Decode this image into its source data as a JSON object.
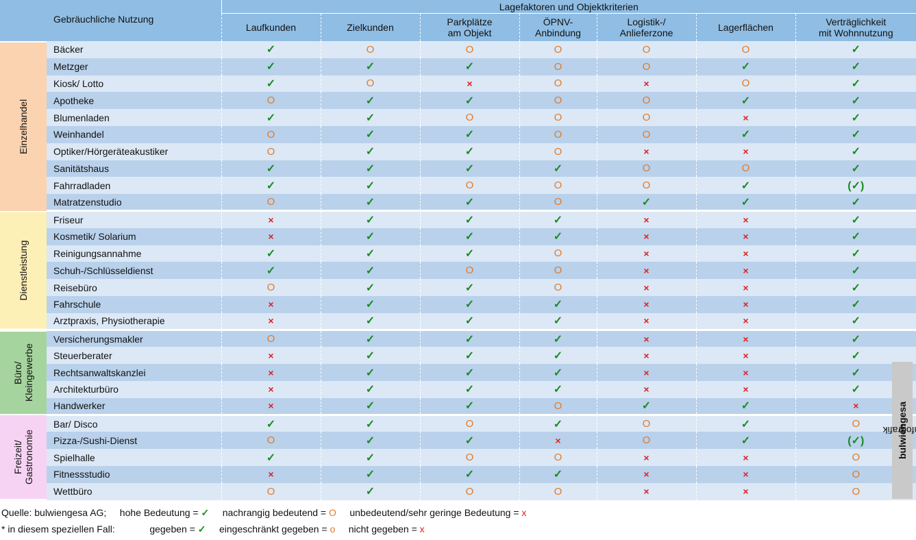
{
  "header": {
    "name_col": "Gebräuchliche Nutzung",
    "super": "Lagefaktoren und Objektkriterien",
    "columns": [
      "Laufkunden",
      "Zielkunden",
      "Parkplätze\nam Objekt",
      "ÖPNV-\nAnbindung",
      "Logistik-/\nAnlieferzone",
      "Lagerflächen",
      "Verträglichkeit\nmit Wohnnutzung"
    ]
  },
  "symbols": {
    "Y": "✓",
    "O": "O",
    "X": "×",
    "L": "(✓)"
  },
  "colors": {
    "yes": "#1a8a22",
    "mid": "#e07a2a",
    "no": "#e02020",
    "header": "#8fbde4",
    "row_light": "#dce8f5",
    "row_dark": "#b9d1eb"
  },
  "groups": [
    {
      "label": "Einzelhandel",
      "cls": "g-einzel",
      "rows": [
        {
          "name": "Bäcker",
          "v": [
            "Y",
            "O",
            "O",
            "O",
            "O",
            "O",
            "Y"
          ]
        },
        {
          "name": "Metzger",
          "v": [
            "Y",
            "Y",
            "Y",
            "O",
            "O",
            "Y",
            "Y"
          ]
        },
        {
          "name": "Kiosk/ Lotto",
          "v": [
            "Y",
            "O",
            "X",
            "O",
            "X",
            "O",
            "Y"
          ]
        },
        {
          "name": "Apotheke",
          "v": [
            "O",
            "Y",
            "Y",
            "O",
            "O",
            "Y",
            "Y"
          ]
        },
        {
          "name": "Blumenladen",
          "v": [
            "Y",
            "Y",
            "O",
            "O",
            "O",
            "X",
            "Y"
          ]
        },
        {
          "name": "Weinhandel",
          "v": [
            "O",
            "Y",
            "Y",
            "O",
            "O",
            "Y",
            "Y"
          ]
        },
        {
          "name": "Optiker/Hörgeräteakustiker",
          "v": [
            "O",
            "Y",
            "Y",
            "O",
            "X",
            "X",
            "Y"
          ]
        },
        {
          "name": "Sanitätshaus",
          "v": [
            "Y",
            "Y",
            "Y",
            "Y",
            "O",
            "O",
            "Y"
          ]
        },
        {
          "name": "Fahrradladen",
          "v": [
            "Y",
            "Y",
            "O",
            "O",
            "O",
            "Y",
            "L"
          ]
        },
        {
          "name": "Matratzenstudio",
          "v": [
            "O",
            "Y",
            "Y",
            "O",
            "Y",
            "Y",
            "Y"
          ]
        }
      ]
    },
    {
      "label": "Dienstleistung",
      "cls": "g-dienst",
      "rows": [
        {
          "name": "Friseur",
          "v": [
            "X",
            "Y",
            "Y",
            "Y",
            "X",
            "X",
            "Y"
          ]
        },
        {
          "name": "Kosmetik/ Solarium",
          "v": [
            "X",
            "Y",
            "Y",
            "Y",
            "X",
            "X",
            "Y"
          ]
        },
        {
          "name": "Reinigungsannahme",
          "v": [
            "Y",
            "Y",
            "Y",
            "O",
            "X",
            "X",
            "Y"
          ]
        },
        {
          "name": "Schuh-/Schlüsseldienst",
          "v": [
            "Y",
            "Y",
            "O",
            "O",
            "X",
            "X",
            "Y"
          ]
        },
        {
          "name": "Reisebüro",
          "v": [
            "O",
            "Y",
            "Y",
            "O",
            "X",
            "X",
            "Y"
          ]
        },
        {
          "name": "Fahrschule",
          "v": [
            "X",
            "Y",
            "Y",
            "Y",
            "X",
            "X",
            "Y"
          ]
        },
        {
          "name": "Arztpraxis, Physiotherapie",
          "v": [
            "X",
            "Y",
            "Y",
            "Y",
            "X",
            "X",
            "Y"
          ]
        }
      ]
    },
    {
      "label": "Büro/\nKleingewerbe",
      "cls": "g-buero",
      "rows": [
        {
          "name": "Versicherungsmakler",
          "v": [
            "O",
            "Y",
            "Y",
            "Y",
            "X",
            "X",
            "Y"
          ]
        },
        {
          "name": "Steuerberater",
          "v": [
            "X",
            "Y",
            "Y",
            "Y",
            "X",
            "X",
            "Y"
          ]
        },
        {
          "name": "Rechtsanwaltskanzlei",
          "v": [
            "X",
            "Y",
            "Y",
            "Y",
            "X",
            "X",
            "Y"
          ]
        },
        {
          "name": "Architekturbüro",
          "v": [
            "X",
            "Y",
            "Y",
            "Y",
            "X",
            "X",
            "Y"
          ]
        },
        {
          "name": "Handwerker",
          "v": [
            "X",
            "Y",
            "Y",
            "O",
            "Y",
            "Y",
            "X"
          ]
        }
      ]
    },
    {
      "label": "Freizeit/\nGastronomie",
      "cls": "g-frei",
      "rows": [
        {
          "name": "Bar/ Disco",
          "v": [
            "Y",
            "Y",
            "O",
            "Y",
            "O",
            "Y",
            "O"
          ]
        },
        {
          "name": "Pizza-/Sushi-Dienst",
          "v": [
            "O",
            "Y",
            "Y",
            "X",
            "O",
            "Y",
            "L"
          ]
        },
        {
          "name": "Spielhalle",
          "v": [
            "Y",
            "Y",
            "O",
            "O",
            "X",
            "X",
            "O"
          ]
        },
        {
          "name": "Fitnessstudio",
          "v": [
            "X",
            "Y",
            "Y",
            "Y",
            "X",
            "X",
            "O"
          ]
        },
        {
          "name": "Wettbüro",
          "v": [
            "O",
            "Y",
            "O",
            "O",
            "X",
            "X",
            "O"
          ]
        }
      ]
    }
  ],
  "watermark": {
    "copyright": "©",
    "brand_bold": "bulwiengesa",
    "brand_rest": "infografik"
  },
  "legend": {
    "line1": {
      "source": "Quelle: bulwiengesa AG;",
      "high": "hohe Bedeutung =",
      "high_sym": "✓",
      "mid": "nachrangig bedeutend =",
      "mid_sym": "O",
      "low": "unbedeutend/sehr geringe Bedeutung =",
      "low_sym": "x"
    },
    "line2": {
      "note": "* in diesem speziellen Fall:",
      "given": "gegeben =",
      "given_sym": "✓",
      "limited": "eingeschränkt gegeben =",
      "limited_sym": "o",
      "not": "nicht gegeben =",
      "not_sym": "x"
    }
  }
}
